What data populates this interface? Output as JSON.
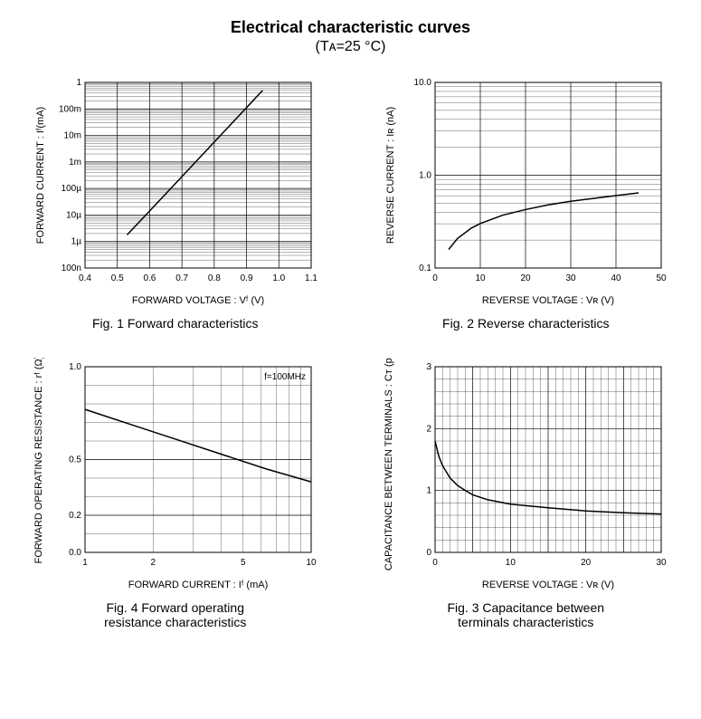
{
  "title": "Electrical characteristic curves",
  "subtitle": "(Tᴀ=25 °C)",
  "charts": {
    "fig1": {
      "type": "line",
      "caption": "Fig. 1  Forward characteristics",
      "xlabel": "FORWARD VOLTAGE : Vᶠ (V)",
      "ylabel": "FORWARD CURRENT : Iᶠ(mA)",
      "xscale": "linear",
      "yscale": "log",
      "xlim": [
        0.4,
        1.1
      ],
      "ylim_exp": [
        -7,
        0
      ],
      "xtick_step": 0.1,
      "yticks": [
        "100n",
        "1µ",
        "10µ",
        "100µ",
        "1m",
        "10m",
        "100m",
        "1"
      ],
      "curve": [
        [
          0.53,
          -5.75
        ],
        [
          0.6,
          -4.85
        ],
        [
          0.7,
          -3.55
        ],
        [
          0.8,
          -2.25
        ],
        [
          0.9,
          -0.95
        ],
        [
          0.95,
          -0.3
        ]
      ],
      "line_color": "#000000",
      "line_width": 1.5,
      "background_color": "#ffffff",
      "grid_color": "#000000"
    },
    "fig2": {
      "type": "line",
      "caption": "Fig. 2  Reverse characteristics",
      "xlabel": "REVERSE VOLTAGE : Vʀ (V)",
      "ylabel": "REVERSE CURRENT : Iʀ (nA)",
      "xscale": "linear",
      "yscale": "log",
      "xlim": [
        0,
        50
      ],
      "ylim_exp": [
        -1,
        1
      ],
      "xtick_step": 10,
      "yticks": [
        "0.1",
        "1.0",
        "10.0"
      ],
      "curve": [
        [
          3,
          -0.8
        ],
        [
          5,
          -0.68
        ],
        [
          8,
          -0.57
        ],
        [
          10,
          -0.52
        ],
        [
          15,
          -0.43
        ],
        [
          20,
          -0.37
        ],
        [
          25,
          -0.32
        ],
        [
          30,
          -0.28
        ],
        [
          35,
          -0.25
        ],
        [
          40,
          -0.22
        ],
        [
          45,
          -0.19
        ]
      ],
      "line_color": "#000000",
      "line_width": 1.5,
      "background_color": "#ffffff",
      "grid_color": "#000000"
    },
    "fig3": {
      "type": "line",
      "caption": "Fig. 3  Capacitance between\n             terminals characteristics",
      "xlabel": "REVERSE VOLTAGE : Vʀ (V)",
      "ylabel": "CAPACITANCE BETWEEN TERMINALS : Cᴛ (pF)",
      "xscale": "linear",
      "yscale": "linear",
      "xlim": [
        0,
        30
      ],
      "ylim": [
        0,
        3
      ],
      "xtick_step": 5,
      "ytick_step": 1,
      "x_minor_per_major": 5,
      "y_minor_per_major": 5,
      "curve": [
        [
          0,
          1.8
        ],
        [
          0.5,
          1.55
        ],
        [
          1,
          1.4
        ],
        [
          2,
          1.2
        ],
        [
          3,
          1.08
        ],
        [
          4,
          1.0
        ],
        [
          5,
          0.93
        ],
        [
          7,
          0.85
        ],
        [
          10,
          0.78
        ],
        [
          15,
          0.72
        ],
        [
          20,
          0.67
        ],
        [
          25,
          0.64
        ],
        [
          30,
          0.62
        ]
      ],
      "line_color": "#000000",
      "line_width": 1.5,
      "background_color": "#ffffff",
      "grid_color": "#000000"
    },
    "fig4": {
      "type": "line",
      "caption": "Fig. 4  Forward operating\n             resistance characteristics",
      "xlabel": "FORWARD CURRENT : Iᶠ (mA)",
      "ylabel": "FORWARD OPERATING RESISTANCE : rᶠ (Ω)",
      "xscale": "log",
      "yscale": "linear",
      "xlim_exp": [
        0,
        1
      ],
      "ylim": [
        0,
        1.0
      ],
      "xticks": [
        "1",
        "2",
        "5",
        "10"
      ],
      "xtick_exp": [
        0,
        0.301,
        0.699,
        1
      ],
      "ytick_step": 0.1,
      "ymajor": [
        0,
        0.2,
        0.5,
        1.0
      ],
      "annotation": "f=100MHz",
      "curve": [
        [
          0.0,
          0.77
        ],
        [
          0.2,
          0.69
        ],
        [
          0.4,
          0.61
        ],
        [
          0.6,
          0.53
        ],
        [
          0.8,
          0.45
        ],
        [
          1.0,
          0.38
        ]
      ],
      "line_color": "#000000",
      "line_width": 1.5,
      "background_color": "#ffffff",
      "grid_color": "#000000"
    }
  }
}
